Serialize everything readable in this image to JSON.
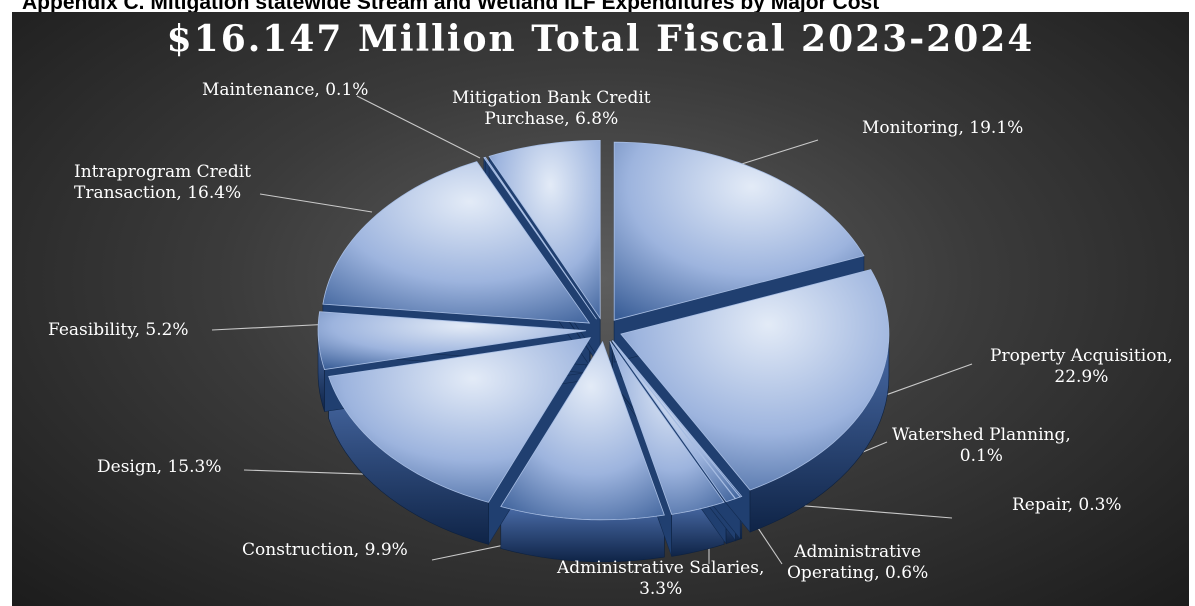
{
  "page": {
    "caption": "Appendix C. Mitigation statewide Stream and Wetland ILF Expenditures by Major Cost"
  },
  "chart_data": {
    "type": "pie",
    "title": "$16.147 Million Total Fiscal 2023-2024",
    "slices": [
      {
        "label": "Monitoring",
        "percent": 19.1,
        "value_label": "19.1%"
      },
      {
        "label": "Property Acquisition",
        "percent": 22.9,
        "value_label": "22.9%"
      },
      {
        "label": "Watershed Planning",
        "percent": 0.1,
        "value_label": "0.1%"
      },
      {
        "label": "Repair",
        "percent": 0.3,
        "value_label": "0.3%"
      },
      {
        "label": "Administrative Operating",
        "percent": 0.6,
        "value_label": "0.6%"
      },
      {
        "label": "Administrative Salaries",
        "percent": 3.3,
        "value_label": "3.3%"
      },
      {
        "label": "Construction",
        "percent": 9.9,
        "value_label": "9.9%"
      },
      {
        "label": "Design",
        "percent": 15.3,
        "value_label": "15.3%"
      },
      {
        "label": "Feasibility",
        "percent": 5.2,
        "value_label": "5.2%"
      },
      {
        "label": "Intraprogram Credit Transaction",
        "percent": 16.4,
        "value_label": "16.4%"
      },
      {
        "label": "Maintenance",
        "percent": 0.1,
        "value_label": "0.1%"
      },
      {
        "label": "Mitigation Bank Credit Purchase",
        "percent": 6.8,
        "value_label": "6.8%"
      }
    ],
    "style": "3d-exploded",
    "colors": {
      "light": "#dbe5f4",
      "mid": "#8fa9d6",
      "dark": "#1f3f73"
    }
  }
}
